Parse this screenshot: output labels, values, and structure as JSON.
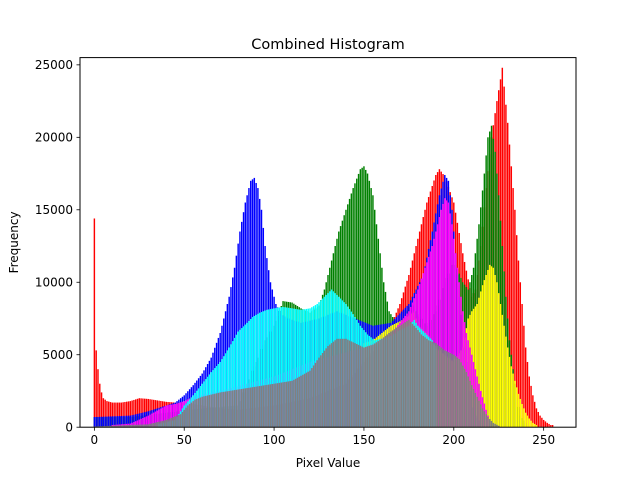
{
  "chart_data": {
    "type": "bar",
    "title": "Combined Histogram",
    "xlabel": "Pixel Value",
    "ylabel": "Frequency",
    "xlim": [
      -8,
      268
    ],
    "ylim": [
      0,
      25500
    ],
    "xticks": [
      0,
      50,
      100,
      150,
      200,
      250
    ],
    "yticks": [
      0,
      5000,
      10000,
      15000,
      20000,
      25000
    ],
    "grid": false,
    "draw_order": [
      "red",
      "green",
      "blue",
      "yellow",
      "magenta",
      "cyan",
      "gray"
    ],
    "series": [
      {
        "color": "#ff0000",
        "points": [
          [
            0,
            14400
          ],
          [
            1,
            5300
          ],
          [
            2,
            4000
          ],
          [
            3,
            3000
          ],
          [
            4,
            2400
          ],
          [
            5,
            2000
          ],
          [
            7,
            1800
          ],
          [
            10,
            1700
          ],
          [
            15,
            1700
          ],
          [
            20,
            1800
          ],
          [
            25,
            2000
          ],
          [
            30,
            1950
          ],
          [
            35,
            1850
          ],
          [
            40,
            1750
          ],
          [
            45,
            1700
          ],
          [
            50,
            1700
          ],
          [
            55,
            1600
          ],
          [
            60,
            1500
          ],
          [
            70,
            1300
          ],
          [
            80,
            1200
          ],
          [
            100,
            1500
          ],
          [
            120,
            2000
          ],
          [
            140,
            3000
          ],
          [
            150,
            4500
          ],
          [
            160,
            6000
          ],
          [
            165,
            7000
          ],
          [
            170,
            8500
          ],
          [
            175,
            10500
          ],
          [
            180,
            13000
          ],
          [
            185,
            15500
          ],
          [
            190,
            17400
          ],
          [
            192,
            17800
          ],
          [
            195,
            17300
          ],
          [
            200,
            15500
          ],
          [
            205,
            12000
          ],
          [
            210,
            9000
          ],
          [
            212,
            9500
          ],
          [
            215,
            12500
          ],
          [
            218,
            16500
          ],
          [
            221,
            20000
          ],
          [
            224,
            22500
          ],
          [
            226,
            24000
          ],
          [
            227,
            24800
          ],
          [
            228,
            23500
          ],
          [
            230,
            21000
          ],
          [
            232,
            18000
          ],
          [
            234,
            15000
          ],
          [
            236,
            11500
          ],
          [
            238,
            8500
          ],
          [
            240,
            5500
          ],
          [
            242,
            3500
          ],
          [
            244,
            2200
          ],
          [
            246,
            1300
          ],
          [
            248,
            800
          ],
          [
            250,
            500
          ],
          [
            252,
            300
          ],
          [
            254,
            150
          ],
          [
            255,
            150
          ]
        ]
      },
      {
        "color": "#008000",
        "points": [
          [
            0,
            700
          ],
          [
            20,
            700
          ],
          [
            40,
            1000
          ],
          [
            60,
            1300
          ],
          [
            80,
            1500
          ],
          [
            90,
            4500
          ],
          [
            95,
            6000
          ],
          [
            100,
            7000
          ],
          [
            105,
            8700
          ],
          [
            110,
            8600
          ],
          [
            115,
            8200
          ],
          [
            120,
            7900
          ],
          [
            125,
            8400
          ],
          [
            128,
            9500
          ],
          [
            132,
            11500
          ],
          [
            136,
            13500
          ],
          [
            140,
            15000
          ],
          [
            144,
            16500
          ],
          [
            148,
            17800
          ],
          [
            150,
            18000
          ],
          [
            152,
            17500
          ],
          [
            155,
            16000
          ],
          [
            158,
            13000
          ],
          [
            161,
            10000
          ],
          [
            164,
            8000
          ],
          [
            168,
            7200
          ],
          [
            172,
            7500
          ],
          [
            176,
            8600
          ],
          [
            180,
            7800
          ],
          [
            185,
            7000
          ],
          [
            190,
            8000
          ],
          [
            195,
            10000
          ],
          [
            200,
            11500
          ],
          [
            205,
            10000
          ],
          [
            208,
            9500
          ],
          [
            211,
            11000
          ],
          [
            214,
            14000
          ],
          [
            217,
            17500
          ],
          [
            219,
            20000
          ],
          [
            221,
            20800
          ],
          [
            223,
            19000
          ],
          [
            225,
            16000
          ],
          [
            227,
            12500
          ],
          [
            229,
            9000
          ],
          [
            231,
            6000
          ],
          [
            233,
            4000
          ],
          [
            235,
            2000
          ],
          [
            237,
            800
          ],
          [
            240,
            300
          ]
        ]
      },
      {
        "color": "#0000ff",
        "points": [
          [
            0,
            700
          ],
          [
            20,
            800
          ],
          [
            30,
            1100
          ],
          [
            40,
            1500
          ],
          [
            45,
            1700
          ],
          [
            50,
            2200
          ],
          [
            55,
            2900
          ],
          [
            60,
            3700
          ],
          [
            65,
            4800
          ],
          [
            70,
            6500
          ],
          [
            75,
            9000
          ],
          [
            78,
            11000
          ],
          [
            81,
            13500
          ],
          [
            84,
            15500
          ],
          [
            87,
            17000
          ],
          [
            89,
            17200
          ],
          [
            91,
            16500
          ],
          [
            93,
            15000
          ],
          [
            95,
            12500
          ],
          [
            98,
            10000
          ],
          [
            101,
            8500
          ],
          [
            104,
            7800
          ],
          [
            108,
            7500
          ],
          [
            115,
            7200
          ],
          [
            125,
            7500
          ],
          [
            135,
            8000
          ],
          [
            145,
            7500
          ],
          [
            155,
            7000
          ],
          [
            165,
            7200
          ],
          [
            175,
            8500
          ],
          [
            183,
            10500
          ],
          [
            188,
            13500
          ],
          [
            192,
            16000
          ],
          [
            195,
            17400
          ],
          [
            197,
            17000
          ],
          [
            199,
            15000
          ],
          [
            201,
            12000
          ],
          [
            203,
            9000
          ],
          [
            205,
            6500
          ],
          [
            207,
            4500
          ],
          [
            209,
            2500
          ],
          [
            212,
            800
          ],
          [
            215,
            300
          ]
        ]
      },
      {
        "color": "#ffff00",
        "points": [
          [
            150,
            5800
          ],
          [
            155,
            6000
          ],
          [
            160,
            6500
          ],
          [
            165,
            7000
          ],
          [
            170,
            7300
          ],
          [
            175,
            7700
          ],
          [
            178,
            8000
          ],
          [
            180,
            7000
          ],
          [
            185,
            6500
          ],
          [
            190,
            5500
          ],
          [
            195,
            5000
          ],
          [
            200,
            4500
          ],
          [
            205,
            5500
          ],
          [
            208,
            7500
          ],
          [
            210,
            8000
          ],
          [
            213,
            8500
          ],
          [
            216,
            9800
          ],
          [
            218,
            10500
          ],
          [
            220,
            11200
          ],
          [
            222,
            11000
          ],
          [
            224,
            10000
          ],
          [
            226,
            8500
          ],
          [
            228,
            7000
          ],
          [
            230,
            5500
          ],
          [
            232,
            4200
          ],
          [
            234,
            3200
          ],
          [
            236,
            2300
          ],
          [
            238,
            1600
          ],
          [
            240,
            1000
          ],
          [
            242,
            600
          ],
          [
            244,
            300
          ],
          [
            246,
            150
          ]
        ]
      },
      {
        "color": "#ff00ff",
        "points": [
          [
            10,
            150
          ],
          [
            20,
            250
          ],
          [
            30,
            800
          ],
          [
            40,
            1500
          ],
          [
            45,
            1600
          ],
          [
            50,
            1800
          ],
          [
            55,
            2100
          ],
          [
            70,
            2500
          ],
          [
            100,
            3500
          ],
          [
            120,
            4500
          ],
          [
            150,
            5500
          ],
          [
            165,
            6400
          ],
          [
            170,
            7200
          ],
          [
            175,
            8000
          ],
          [
            180,
            9500
          ],
          [
            184,
            11000
          ],
          [
            188,
            12500
          ],
          [
            191,
            14000
          ],
          [
            193,
            15000
          ],
          [
            195,
            15800
          ],
          [
            197,
            15500
          ],
          [
            199,
            14000
          ],
          [
            201,
            12000
          ],
          [
            203,
            10000
          ],
          [
            205,
            8000
          ],
          [
            207,
            6500
          ],
          [
            210,
            5000
          ],
          [
            212,
            4000
          ],
          [
            215,
            2500
          ],
          [
            218,
            1200
          ],
          [
            220,
            400
          ]
        ]
      },
      {
        "color": "#00ffff",
        "points": [
          [
            35,
            200
          ],
          [
            45,
            500
          ],
          [
            50,
            1500
          ],
          [
            55,
            2200
          ],
          [
            60,
            3000
          ],
          [
            65,
            3800
          ],
          [
            70,
            4500
          ],
          [
            75,
            5500
          ],
          [
            80,
            6600
          ],
          [
            85,
            7200
          ],
          [
            88,
            7600
          ],
          [
            92,
            7900
          ],
          [
            96,
            8100
          ],
          [
            100,
            8200
          ],
          [
            105,
            8300
          ],
          [
            110,
            8200
          ],
          [
            115,
            8100
          ],
          [
            120,
            8200
          ],
          [
            124,
            8500
          ],
          [
            128,
            9000
          ],
          [
            132,
            9500
          ],
          [
            136,
            9000
          ],
          [
            140,
            8500
          ],
          [
            144,
            7800
          ],
          [
            148,
            7000
          ],
          [
            152,
            6400
          ],
          [
            156,
            6000
          ],
          [
            160,
            6100
          ],
          [
            165,
            6300
          ],
          [
            170,
            6700
          ],
          [
            175,
            7000
          ],
          [
            178,
            7400
          ],
          [
            180,
            7000
          ],
          [
            184,
            6500
          ],
          [
            188,
            6000
          ],
          [
            190,
            5600
          ]
        ]
      },
      {
        "color": "#808080",
        "points": [
          [
            0,
            50
          ],
          [
            10,
            100
          ],
          [
            30,
            200
          ],
          [
            40,
            500
          ],
          [
            48,
            900
          ],
          [
            52,
            1500
          ],
          [
            56,
            1900
          ],
          [
            60,
            2100
          ],
          [
            70,
            2400
          ],
          [
            80,
            2600
          ],
          [
            90,
            2800
          ],
          [
            100,
            3000
          ],
          [
            110,
            3200
          ],
          [
            120,
            3900
          ],
          [
            125,
            4800
          ],
          [
            130,
            5600
          ],
          [
            135,
            6100
          ],
          [
            140,
            6100
          ],
          [
            145,
            5800
          ],
          [
            150,
            5500
          ],
          [
            155,
            5700
          ],
          [
            160,
            6100
          ],
          [
            165,
            6600
          ],
          [
            170,
            7000
          ],
          [
            175,
            7400
          ],
          [
            178,
            7000
          ],
          [
            182,
            6400
          ],
          [
            186,
            6000
          ],
          [
            190,
            5800
          ],
          [
            195,
            5300
          ],
          [
            200,
            5000
          ],
          [
            203,
            4700
          ],
          [
            207,
            3800
          ],
          [
            210,
            2900
          ],
          [
            213,
            2100
          ],
          [
            216,
            1300
          ],
          [
            219,
            700
          ],
          [
            222,
            300
          ],
          [
            225,
            100
          ]
        ]
      }
    ]
  }
}
